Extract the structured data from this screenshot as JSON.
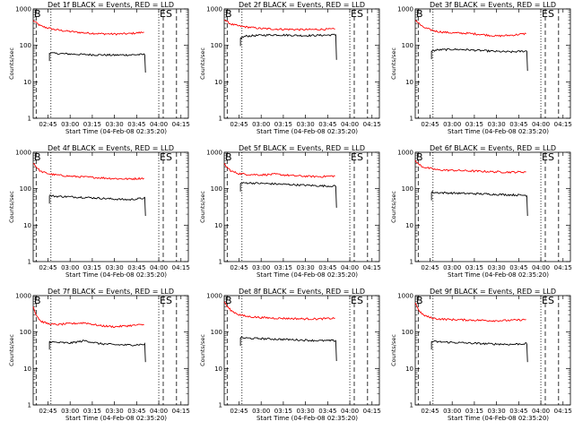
{
  "figure": {
    "background": "#ffffff"
  },
  "chart_data": [
    {
      "type": "line",
      "title": "Det 1f BLACK = Events, RED = LLD",
      "xlabel": "Start Time (04-Feb-08 02:35:20)",
      "ylabel": "Counts/sec",
      "ylog": true,
      "ylim": [
        1,
        1000
      ],
      "xlim": [
        "02:35",
        "04:20"
      ],
      "xticks": [
        "02:45",
        "03:00",
        "03:15",
        "03:30",
        "03:45",
        "04:00",
        "04:15"
      ],
      "yticks": [
        "1",
        "10",
        "100",
        "1000"
      ],
      "markers": [
        "B",
        "ES"
      ],
      "series": [
        {
          "name": "",
          "color": "#ff0000",
          "x": [
            "02:35",
            "02:37",
            "02:40",
            "02:45",
            "02:50",
            "03:00",
            "03:10",
            "03:20",
            "03:30",
            "03:40",
            "03:50"
          ],
          "y": [
            480,
            420,
            340,
            300,
            270,
            240,
            220,
            210,
            205,
            210,
            230
          ]
        },
        {
          "name": "",
          "color": "#000000",
          "x": [
            "02:46",
            "02:50",
            "03:00",
            "03:10",
            "03:20",
            "03:30",
            "03:40",
            "03:50",
            "03:51"
          ],
          "y": [
            62,
            60,
            58,
            56,
            55,
            54,
            55,
            56,
            18
          ]
        }
      ]
    },
    {
      "type": "line",
      "title": "Det 2f BLACK = Events, RED = LLD",
      "xlabel": "Start Time (04-Feb-08 02:35:20)",
      "ylabel": "Counts/sec",
      "ylog": true,
      "ylim": [
        1,
        1000
      ],
      "xlim": [
        "02:35",
        "04:20"
      ],
      "xticks": [
        "02:45",
        "03:00",
        "03:15",
        "03:30",
        "03:45",
        "04:00",
        "04:15"
      ],
      "yticks": [
        "1",
        "10",
        "100",
        "1000"
      ],
      "markers": [
        "B",
        "ES"
      ],
      "series": [
        {
          "name": "",
          "color": "#ff0000",
          "x": [
            "02:35",
            "02:37",
            "02:40",
            "02:45",
            "02:50",
            "03:00",
            "03:10",
            "03:20",
            "03:30",
            "03:40",
            "03:50"
          ],
          "y": [
            520,
            440,
            380,
            340,
            320,
            290,
            280,
            275,
            270,
            275,
            280
          ]
        },
        {
          "name": "",
          "color": "#000000",
          "x": [
            "02:46",
            "02:50",
            "03:00",
            "03:10",
            "03:20",
            "03:30",
            "03:40",
            "03:50",
            "03:51"
          ],
          "y": [
            160,
            180,
            190,
            195,
            190,
            185,
            190,
            195,
            40
          ]
        }
      ]
    },
    {
      "type": "line",
      "title": "Det 3f BLACK = Events, RED = LLD",
      "xlabel": "Start Time (04-Feb-08 02:35:20)",
      "ylabel": "Counts/sec",
      "ylog": true,
      "ylim": [
        1,
        1000
      ],
      "xlim": [
        "02:35",
        "04:20"
      ],
      "xticks": [
        "02:45",
        "03:00",
        "03:15",
        "03:30",
        "03:45",
        "04:00",
        "04:15"
      ],
      "yticks": [
        "1",
        "10",
        "100",
        "1000"
      ],
      "markers": [
        "B",
        "ES"
      ],
      "series": [
        {
          "name": "",
          "color": "#ff0000",
          "x": [
            "02:35",
            "02:37",
            "02:40",
            "02:45",
            "02:50",
            "03:00",
            "03:10",
            "03:20",
            "03:30",
            "03:40",
            "03:50"
          ],
          "y": [
            500,
            420,
            320,
            270,
            240,
            220,
            215,
            200,
            180,
            190,
            210
          ]
        },
        {
          "name": "",
          "color": "#000000",
          "x": [
            "02:46",
            "02:50",
            "03:00",
            "03:10",
            "03:20",
            "03:30",
            "03:40",
            "03:50",
            "03:51"
          ],
          "y": [
            70,
            75,
            78,
            76,
            72,
            68,
            66,
            70,
            20
          ]
        }
      ]
    },
    {
      "type": "line",
      "title": "Det 4f BLACK = Events, RED = LLD",
      "xlabel": "Start Time (04-Feb-08 02:35:20)",
      "ylabel": "Counts/sec",
      "ylog": true,
      "ylim": [
        1,
        1000
      ],
      "xlim": [
        "02:35",
        "04:20"
      ],
      "xticks": [
        "02:45",
        "03:00",
        "03:15",
        "03:30",
        "03:45",
        "04:00",
        "04:15"
      ],
      "yticks": [
        "1",
        "10",
        "100",
        "1000"
      ],
      "markers": [
        "B",
        "ES"
      ],
      "series": [
        {
          "name": "",
          "color": "#ff0000",
          "x": [
            "02:35",
            "02:37",
            "02:40",
            "02:45",
            "02:50",
            "03:00",
            "03:10",
            "03:20",
            "03:30",
            "03:40",
            "03:50"
          ],
          "y": [
            520,
            400,
            300,
            260,
            240,
            220,
            210,
            200,
            190,
            185,
            195
          ]
        },
        {
          "name": "",
          "color": "#000000",
          "x": [
            "02:46",
            "02:50",
            "03:00",
            "03:10",
            "03:20",
            "03:30",
            "03:40",
            "03:50",
            "03:51"
          ],
          "y": [
            65,
            62,
            60,
            58,
            55,
            52,
            50,
            55,
            18
          ]
        }
      ]
    },
    {
      "type": "line",
      "title": "Det 5f BLACK = Events, RED = LLD",
      "xlabel": "Start Time (04-Feb-08 02:35:20)",
      "ylabel": "Counts/sec",
      "ylog": true,
      "ylim": [
        1,
        1000
      ],
      "xlim": [
        "02:35",
        "04:20"
      ],
      "xticks": [
        "02:45",
        "03:00",
        "03:15",
        "03:30",
        "03:45",
        "04:00",
        "04:15"
      ],
      "yticks": [
        "1",
        "10",
        "100",
        "1000"
      ],
      "markers": [
        "B",
        "ES"
      ],
      "series": [
        {
          "name": "",
          "color": "#ff0000",
          "x": [
            "02:35",
            "02:37",
            "02:40",
            "02:45",
            "02:50",
            "03:00",
            "03:10",
            "03:20",
            "03:30",
            "03:40",
            "03:50"
          ],
          "y": [
            480,
            380,
            300,
            260,
            250,
            240,
            250,
            230,
            220,
            215,
            225
          ]
        },
        {
          "name": "",
          "color": "#000000",
          "x": [
            "02:46",
            "02:50",
            "03:00",
            "03:10",
            "03:20",
            "03:30",
            "03:40",
            "03:50",
            "03:51"
          ],
          "y": [
            140,
            145,
            140,
            135,
            130,
            125,
            120,
            118,
            30
          ]
        }
      ]
    },
    {
      "type": "line",
      "title": "Det 6f BLACK = Events, RED = LLD",
      "xlabel": "Start Time (04-Feb-08 02:35:20)",
      "ylabel": "Counts/sec",
      "ylog": true,
      "ylim": [
        1,
        1000
      ],
      "xlim": [
        "02:35",
        "04:20"
      ],
      "xticks": [
        "02:45",
        "03:00",
        "03:15",
        "03:30",
        "03:45",
        "04:00",
        "04:15"
      ],
      "yticks": [
        "1",
        "10",
        "100",
        "1000"
      ],
      "markers": [
        "B",
        "ES"
      ],
      "series": [
        {
          "name": "",
          "color": "#ff0000",
          "x": [
            "02:35",
            "02:37",
            "02:40",
            "02:45",
            "02:50",
            "03:00",
            "03:10",
            "03:20",
            "03:30",
            "03:40",
            "03:50"
          ],
          "y": [
            600,
            480,
            400,
            360,
            330,
            320,
            310,
            300,
            290,
            285,
            290
          ]
        },
        {
          "name": "",
          "color": "#000000",
          "x": [
            "02:46",
            "02:50",
            "03:00",
            "03:10",
            "03:20",
            "03:30",
            "03:40",
            "03:50",
            "03:51"
          ],
          "y": [
            80,
            78,
            76,
            74,
            72,
            70,
            68,
            66,
            18
          ]
        }
      ]
    },
    {
      "type": "line",
      "title": "Det 7f BLACK = Events, RED = LLD",
      "xlabel": "Start Time (04-Feb-08 02:35:20)",
      "ylabel": "Counts/sec",
      "ylog": true,
      "ylim": [
        1,
        1000
      ],
      "xlim": [
        "02:35",
        "04:20"
      ],
      "xticks": [
        "02:45",
        "03:00",
        "03:15",
        "03:30",
        "03:45",
        "04:00",
        "04:15"
      ],
      "yticks": [
        "1",
        "10",
        "100",
        "1000"
      ],
      "markers": [
        "B",
        "ES"
      ],
      "series": [
        {
          "name": "",
          "color": "#ff0000",
          "x": [
            "02:35",
            "02:37",
            "02:40",
            "02:45",
            "02:50",
            "03:00",
            "03:10",
            "03:20",
            "03:30",
            "03:40",
            "03:50"
          ],
          "y": [
            500,
            300,
            200,
            170,
            160,
            170,
            180,
            150,
            140,
            150,
            160
          ]
        },
        {
          "name": "",
          "color": "#000000",
          "x": [
            "02:46",
            "02:50",
            "03:00",
            "03:10",
            "03:20",
            "03:30",
            "03:40",
            "03:50",
            "03:51"
          ],
          "y": [
            55,
            52,
            50,
            58,
            48,
            45,
            44,
            46,
            15
          ]
        }
      ]
    },
    {
      "type": "line",
      "title": "Det 8f BLACK = Events, RED = LLD",
      "xlabel": "Start Time (04-Feb-08 02:35:20)",
      "ylabel": "Counts/sec",
      "ylog": true,
      "ylim": [
        1,
        1000
      ],
      "xlim": [
        "02:35",
        "04:20"
      ],
      "xticks": [
        "02:45",
        "03:00",
        "03:15",
        "03:30",
        "03:45",
        "04:00",
        "04:15"
      ],
      "yticks": [
        "1",
        "10",
        "100",
        "1000"
      ],
      "markers": [
        "B",
        "ES"
      ],
      "series": [
        {
          "name": "",
          "color": "#ff0000",
          "x": [
            "02:35",
            "02:37",
            "02:40",
            "02:45",
            "02:50",
            "03:00",
            "03:10",
            "03:20",
            "03:30",
            "03:40",
            "03:50"
          ],
          "y": [
            700,
            500,
            380,
            300,
            270,
            250,
            240,
            235,
            230,
            230,
            240
          ]
        },
        {
          "name": "",
          "color": "#000000",
          "x": [
            "02:46",
            "02:50",
            "03:00",
            "03:10",
            "03:20",
            "03:30",
            "03:40",
            "03:50",
            "03:51"
          ],
          "y": [
            70,
            68,
            66,
            64,
            62,
            60,
            58,
            58,
            16
          ]
        }
      ]
    },
    {
      "type": "line",
      "title": "Det 9f BLACK = Events, RED = LLD",
      "xlabel": "Start Time (04-Feb-08 02:35:20)",
      "ylabel": "Counts/sec",
      "ylog": true,
      "ylim": [
        1,
        1000
      ],
      "xlim": [
        "02:35",
        "04:20"
      ],
      "xticks": [
        "02:45",
        "03:00",
        "03:15",
        "03:30",
        "03:45",
        "04:00",
        "04:15"
      ],
      "yticks": [
        "1",
        "10",
        "100",
        "1000"
      ],
      "markers": [
        "B",
        "ES"
      ],
      "series": [
        {
          "name": "",
          "color": "#ff0000",
          "x": [
            "02:35",
            "02:37",
            "02:40",
            "02:45",
            "02:50",
            "03:00",
            "03:10",
            "03:20",
            "03:30",
            "03:40",
            "03:50"
          ],
          "y": [
            650,
            420,
            300,
            250,
            230,
            220,
            215,
            210,
            205,
            210,
            220
          ]
        },
        {
          "name": "",
          "color": "#000000",
          "x": [
            "02:46",
            "02:50",
            "03:00",
            "03:10",
            "03:20",
            "03:30",
            "03:40",
            "03:50",
            "03:51"
          ],
          "y": [
            55,
            54,
            52,
            50,
            48,
            47,
            46,
            48,
            15
          ]
        }
      ]
    }
  ]
}
